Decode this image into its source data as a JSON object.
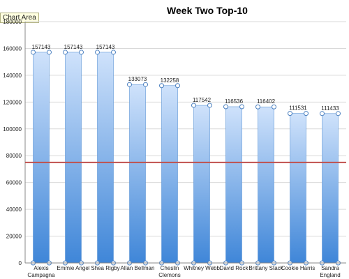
{
  "tooltip": "Chart Area",
  "chart_data": {
    "type": "bar",
    "title": "Week Two Top-10",
    "categories": [
      "Alexis Campagna",
      "Emmie Angel",
      "Shea Rigby",
      "Allan Bellman",
      "Cheslin Clemons",
      "Whitney Webb",
      "David Rock",
      "Brittany Stack",
      "Cookie Harris",
      "Sandra England"
    ],
    "category_lines": [
      [
        "Alexis",
        "Campagna"
      ],
      [
        "Emmie Angel"
      ],
      [
        "Shea Rigby"
      ],
      [
        "Allan Bellman"
      ],
      [
        "Cheslin",
        "Clemons"
      ],
      [
        "Whitney Webb"
      ],
      [
        "David Rock"
      ],
      [
        "Brittany Stack"
      ],
      [
        "Cookie Harris"
      ],
      [
        "Sandra",
        "England"
      ]
    ],
    "values": [
      157143,
      157143,
      157143,
      133073,
      132258,
      117542,
      116536,
      116402,
      111531,
      111433
    ],
    "ylim": [
      0,
      180000
    ],
    "yticks": [
      0,
      20000,
      40000,
      60000,
      80000,
      100000,
      120000,
      140000,
      160000,
      180000
    ],
    "reference_line": 75000,
    "grid": "horizontal",
    "legend": "none",
    "colors": {
      "bar_top": "#cfe2fb",
      "bar_bottom": "#3f86d8",
      "reference_line": "#c0504d",
      "grid": "#d9d9d9",
      "marker_fill": "#ffffff",
      "marker_stroke": "#4a7fbf"
    }
  }
}
